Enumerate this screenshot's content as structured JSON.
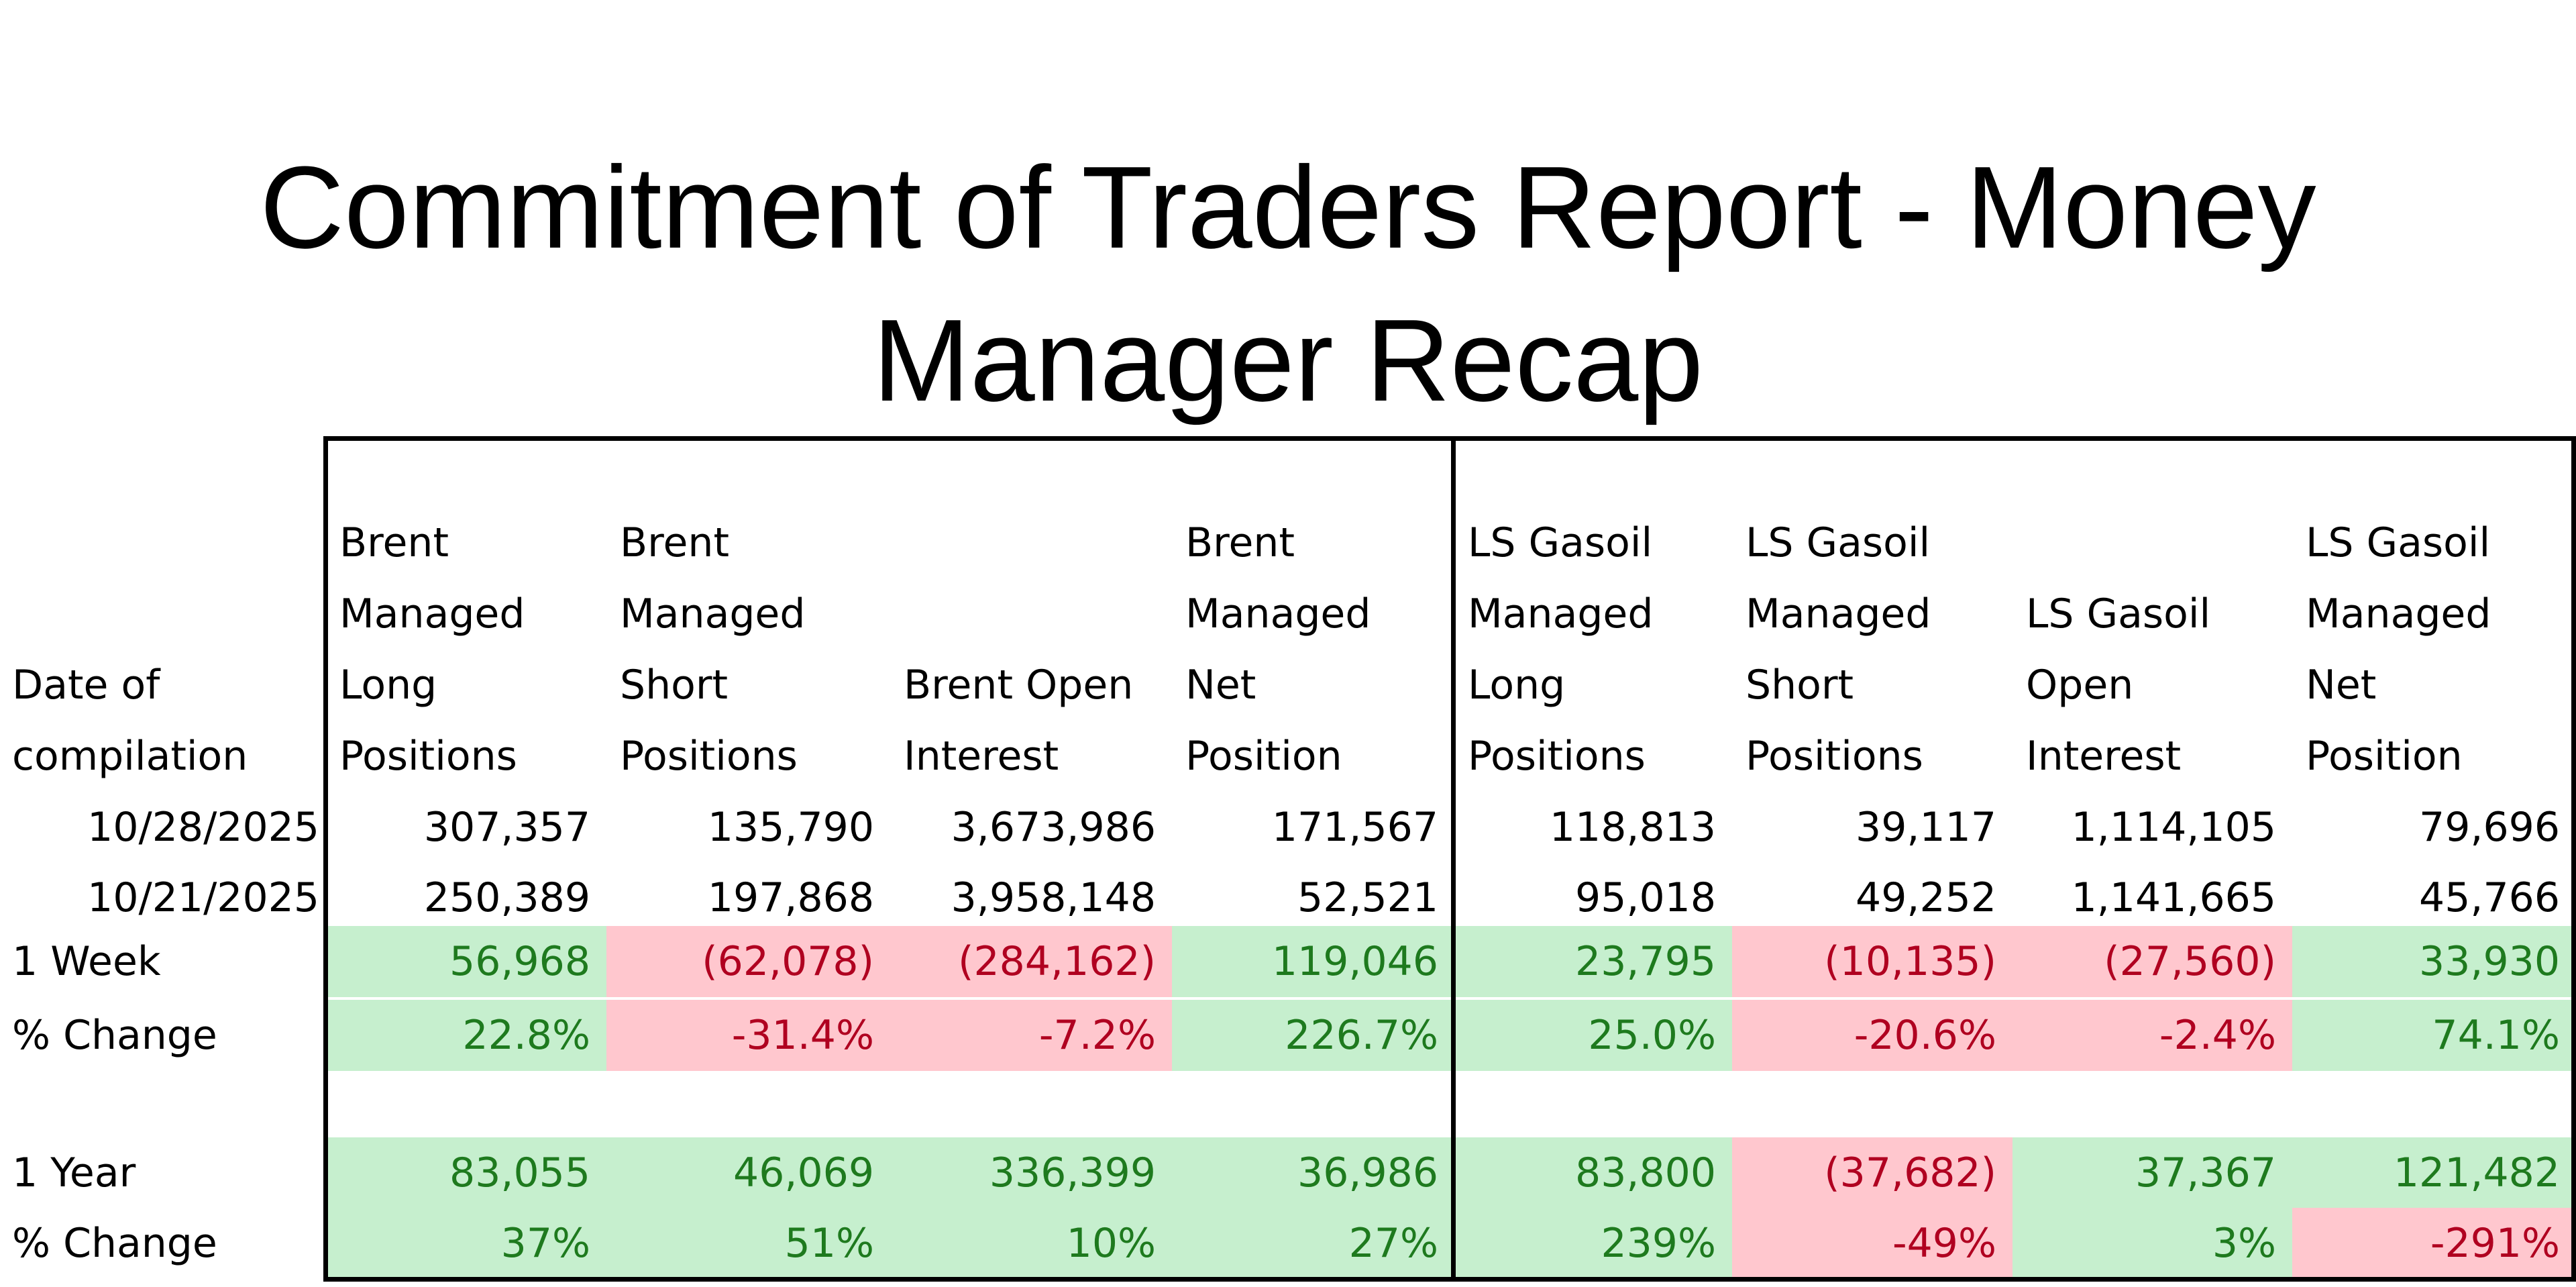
{
  "title": {
    "line1": "Commitment of Traders Report - Money",
    "line2": "Manager Recap"
  },
  "table": {
    "date_header": [
      "Date of",
      "compilation"
    ],
    "columns": [
      {
        "lines": [
          "Brent",
          "Managed",
          "Long",
          "Positions"
        ]
      },
      {
        "lines": [
          "Brent",
          "Managed",
          "Short",
          "Positions"
        ]
      },
      {
        "lines": [
          "Brent Open",
          "Interest"
        ]
      },
      {
        "lines": [
          "Brent",
          "Managed",
          "Net",
          "Position"
        ]
      },
      {
        "lines": [
          "LS Gasoil",
          "Managed",
          "Long",
          "Positions"
        ]
      },
      {
        "lines": [
          "LS Gasoil",
          "Managed",
          "Short",
          "Positions"
        ]
      },
      {
        "lines": [
          "LS Gasoil",
          "Open",
          "Interest"
        ]
      },
      {
        "lines": [
          "LS Gasoil",
          "Managed",
          "Net",
          "Position"
        ]
      }
    ],
    "rows": [
      {
        "label": "10/28/2025",
        "values": [
          "307,357",
          "135,790",
          "3,673,986",
          "171,567",
          "118,813",
          "39,117",
          "1,114,105",
          "79,696"
        ],
        "status": [
          "",
          "",
          "",
          "",
          "",
          "",
          "",
          ""
        ]
      },
      {
        "label": "10/21/2025",
        "values": [
          "250,389",
          "197,868",
          "3,958,148",
          "52,521",
          "95,018",
          "49,252",
          "1,141,665",
          "45,766"
        ],
        "status": [
          "",
          "",
          "",
          "",
          "",
          "",
          "",
          ""
        ]
      },
      {
        "label": "1 Week",
        "values": [
          "56,968",
          "(62,078)",
          "(284,162)",
          "119,046",
          "23,795",
          "(10,135)",
          "(27,560)",
          "33,930"
        ],
        "status": [
          "pos",
          "neg",
          "neg",
          "pos",
          "pos",
          "neg",
          "neg",
          "pos"
        ]
      },
      {
        "label": "% Change",
        "values": [
          "22.8%",
          "-31.4%",
          "-7.2%",
          "226.7%",
          "25.0%",
          "-20.6%",
          "-2.4%",
          "74.1%"
        ],
        "status": [
          "pos",
          "neg",
          "neg",
          "pos",
          "pos",
          "neg",
          "neg",
          "pos"
        ]
      },
      {
        "label": "1 Year",
        "values": [
          "83,055",
          "46,069",
          "336,399",
          "36,986",
          "83,800",
          "(37,682)",
          "37,367",
          "121,482"
        ],
        "status": [
          "pos",
          "pos",
          "pos",
          "pos",
          "pos",
          "neg",
          "pos",
          "pos"
        ]
      },
      {
        "label": "% Change",
        "values": [
          "37%",
          "51%",
          "10%",
          "27%",
          "239%",
          "-49%",
          "3%",
          "-291%"
        ],
        "status": [
          "pos",
          "pos",
          "pos",
          "pos",
          "pos",
          "neg",
          "pos",
          "neg"
        ]
      }
    ]
  },
  "colors": {
    "positive_text": "#1e7a1e",
    "negative_text": "#b00020",
    "positive_fill": "#c6efce",
    "negative_fill": "#ffc7ce"
  }
}
